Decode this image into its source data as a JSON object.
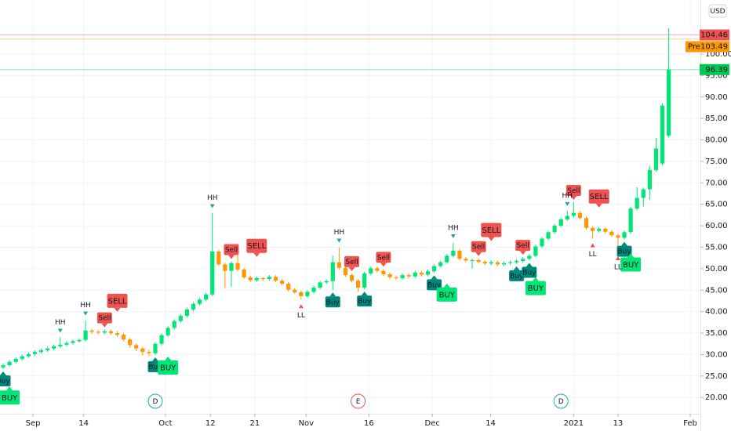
{
  "chart_data": {
    "type": "candlestick",
    "currency": "USD",
    "xlim": [
      -0.5,
      110
    ],
    "ylim": [
      16.2,
      112.6
    ],
    "xticks": [
      {
        "value": 4.7,
        "label": "Sep"
      },
      {
        "value": 12.7,
        "label": "14"
      },
      {
        "value": 25.6,
        "label": "Oct"
      },
      {
        "value": 32.7,
        "label": "12"
      },
      {
        "value": 39.7,
        "label": "21"
      },
      {
        "value": 47.8,
        "label": "Nov"
      },
      {
        "value": 57.7,
        "label": "16"
      },
      {
        "value": 67.7,
        "label": "Dec"
      },
      {
        "value": 76.9,
        "label": "14"
      },
      {
        "value": 90,
        "label": "2021"
      },
      {
        "value": 97,
        "label": "13"
      },
      {
        "value": 108.4,
        "label": "Feb"
      }
    ],
    "yticks": [
      {
        "value": 20,
        "label": "20.00"
      },
      {
        "value": 25,
        "label": "25.00"
      },
      {
        "value": 30,
        "label": "30.00"
      },
      {
        "value": 35,
        "label": "35.00"
      },
      {
        "value": 40,
        "label": "40.00"
      },
      {
        "value": 45,
        "label": "45.00"
      },
      {
        "value": 50,
        "label": "50.00"
      },
      {
        "value": 55,
        "label": "55.00"
      },
      {
        "value": 60,
        "label": "60.00"
      },
      {
        "value": 65,
        "label": "65.00"
      },
      {
        "value": 70,
        "label": "70.00"
      },
      {
        "value": 75,
        "label": "75.00"
      },
      {
        "value": 80,
        "label": "80.00"
      },
      {
        "value": 85,
        "label": "85.00"
      },
      {
        "value": 90,
        "label": "90.00"
      },
      {
        "value": 95,
        "label": "95.00"
      },
      {
        "value": 100,
        "label": "100.00"
      }
    ],
    "grid": true,
    "up_color": "#00e676",
    "down_color": "#ff9800",
    "ohlc": [
      [
        27.0,
        27.9,
        26.6,
        27.5
      ],
      [
        27.5,
        28.7,
        27.1,
        28.3
      ],
      [
        28.3,
        29.4,
        27.9,
        29.0
      ],
      [
        29.0,
        30.0,
        28.6,
        29.6
      ],
      [
        29.6,
        30.5,
        29.2,
        30.1
      ],
      [
        30.1,
        31.0,
        29.7,
        30.6
      ],
      [
        30.6,
        31.4,
        30.2,
        31.0
      ],
      [
        31.0,
        31.8,
        30.6,
        31.4
      ],
      [
        31.4,
        32.3,
        31.0,
        31.9
      ],
      [
        31.9,
        34.0,
        31.5,
        32.3
      ],
      [
        32.3,
        33.1,
        31.9,
        32.7
      ],
      [
        32.7,
        33.5,
        32.3,
        33.1
      ],
      [
        33.1,
        33.8,
        32.8,
        33.4
      ],
      [
        33.4,
        38.0,
        33.0,
        35.6
      ],
      [
        35.6,
        36.0,
        34.9,
        35.3
      ],
      [
        35.3,
        35.7,
        34.7,
        35.1
      ],
      [
        35.1,
        35.8,
        34.7,
        35.4
      ],
      [
        35.4,
        35.8,
        34.6,
        35.0
      ],
      [
        35.0,
        35.4,
        34.2,
        34.6
      ],
      [
        34.6,
        35.0,
        33.1,
        33.5
      ],
      [
        33.5,
        33.9,
        31.6,
        32.2
      ],
      [
        32.2,
        32.6,
        30.8,
        31.4
      ],
      [
        31.4,
        31.8,
        29.8,
        30.6
      ],
      [
        30.6,
        31.2,
        29.6,
        30.3
      ],
      [
        30.3,
        32.9,
        29.9,
        32.5
      ],
      [
        32.5,
        34.9,
        32.1,
        34.5
      ],
      [
        34.5,
        36.6,
        34.1,
        36.2
      ],
      [
        36.2,
        38.2,
        35.8,
        37.8
      ],
      [
        37.8,
        39.4,
        37.4,
        39.0
      ],
      [
        39.0,
        40.9,
        38.6,
        40.5
      ],
      [
        40.5,
        42.2,
        40.1,
        41.8
      ],
      [
        41.8,
        43.2,
        41.4,
        42.8
      ],
      [
        42.8,
        44.4,
        42.4,
        44.0
      ],
      [
        44.0,
        63.0,
        43.6,
        54.0
      ],
      [
        54.0,
        54.4,
        50.6,
        51.0
      ],
      [
        51.0,
        51.4,
        45.5,
        49.5
      ],
      [
        49.5,
        51.7,
        45.8,
        51.3
      ],
      [
        51.3,
        53.5,
        49.4,
        49.8
      ],
      [
        49.8,
        50.2,
        47.6,
        48.0
      ],
      [
        48.0,
        48.4,
        46.9,
        47.3
      ],
      [
        47.3,
        48.2,
        46.9,
        47.8
      ],
      [
        47.8,
        48.0,
        47.2,
        47.6
      ],
      [
        47.6,
        48.5,
        47.2,
        48.1
      ],
      [
        48.1,
        48.5,
        46.8,
        47.2
      ],
      [
        47.2,
        47.6,
        46.1,
        46.5
      ],
      [
        46.5,
        46.9,
        44.7,
        45.1
      ],
      [
        45.1,
        45.5,
        44.1,
        44.5
      ],
      [
        44.5,
        44.9,
        42.8,
        43.6
      ],
      [
        43.6,
        45.0,
        43.2,
        44.6
      ],
      [
        44.6,
        46.0,
        44.2,
        45.6
      ],
      [
        45.6,
        47.2,
        45.2,
        46.8
      ],
      [
        46.8,
        47.5,
        46.4,
        47.1
      ],
      [
        47.1,
        53.0,
        45.0,
        51.5
      ],
      [
        51.5,
        55.0,
        49.8,
        50.2
      ],
      [
        50.2,
        50.6,
        48.1,
        48.5
      ],
      [
        48.5,
        48.9,
        46.8,
        47.2
      ],
      [
        47.2,
        47.6,
        44.6,
        45.6
      ],
      [
        45.6,
        49.3,
        45.2,
        48.9
      ],
      [
        48.9,
        50.5,
        48.5,
        50.1
      ],
      [
        50.1,
        50.5,
        49.1,
        49.5
      ],
      [
        49.5,
        49.9,
        48.3,
        48.7
      ],
      [
        48.7,
        49.1,
        47.6,
        48.0
      ],
      [
        48.0,
        48.4,
        47.4,
        47.8
      ],
      [
        47.8,
        48.9,
        47.4,
        48.5
      ],
      [
        48.5,
        48.9,
        47.8,
        48.2
      ],
      [
        48.2,
        49.5,
        47.8,
        49.1
      ],
      [
        49.1,
        49.5,
        48.2,
        48.6
      ],
      [
        48.6,
        49.8,
        48.2,
        49.4
      ],
      [
        49.4,
        51.0,
        49.0,
        50.6
      ],
      [
        50.6,
        51.9,
        50.2,
        51.5
      ],
      [
        51.5,
        53.4,
        51.1,
        53.0
      ],
      [
        53.0,
        56.0,
        52.6,
        54.2
      ],
      [
        54.2,
        54.6,
        51.9,
        52.3
      ],
      [
        52.3,
        52.7,
        51.5,
        51.9
      ],
      [
        51.9,
        52.4,
        50.0,
        52.0
      ],
      [
        52.0,
        52.4,
        51.2,
        51.6
      ],
      [
        51.6,
        52.0,
        50.8,
        51.2
      ],
      [
        51.2,
        51.9,
        50.8,
        51.5
      ],
      [
        51.5,
        51.9,
        50.6,
        51.0
      ],
      [
        51.0,
        51.7,
        50.6,
        51.3
      ],
      [
        51.3,
        51.9,
        50.9,
        51.5
      ],
      [
        51.5,
        52.2,
        51.1,
        51.8
      ],
      [
        51.8,
        52.7,
        51.4,
        52.3
      ],
      [
        52.3,
        53.4,
        51.9,
        53.0
      ],
      [
        53.0,
        55.6,
        52.6,
        55.2
      ],
      [
        55.2,
        57.4,
        54.8,
        57.0
      ],
      [
        57.0,
        58.9,
        56.6,
        58.5
      ],
      [
        58.5,
        60.4,
        58.1,
        60.0
      ],
      [
        60.0,
        61.9,
        59.6,
        61.5
      ],
      [
        61.5,
        63.5,
        61.1,
        62.3
      ],
      [
        62.3,
        65.5,
        61.9,
        63.0
      ],
      [
        63.0,
        63.4,
        61.4,
        61.8
      ],
      [
        61.8,
        62.2,
        59.1,
        59.5
      ],
      [
        59.5,
        59.9,
        57.0,
        58.8
      ],
      [
        58.8,
        59.7,
        58.4,
        59.3
      ],
      [
        59.3,
        59.7,
        58.2,
        58.6
      ],
      [
        58.6,
        59.0,
        57.4,
        57.8
      ],
      [
        57.8,
        58.2,
        54.0,
        57.2
      ],
      [
        57.2,
        58.9,
        56.8,
        58.5
      ],
      [
        58.5,
        64.4,
        58.1,
        64.0
      ],
      [
        64.0,
        69.0,
        63.6,
        66.5
      ],
      [
        66.5,
        68.9,
        64.5,
        68.5
      ],
      [
        68.5,
        74.0,
        66.0,
        73.0
      ],
      [
        73.0,
        80.5,
        72.6,
        78.0
      ],
      [
        74.5,
        88.5,
        74.1,
        88.0
      ],
      [
        81.0,
        106.0,
        80.6,
        96.39
      ]
    ],
    "markers": [
      {
        "label": "Buy",
        "color": "#00897b",
        "text_color": "#ffffff",
        "side": "below",
        "size": "small",
        "indices": [
          0,
          24,
          52,
          57,
          68,
          81,
          83,
          98
        ]
      },
      {
        "label": "BUY",
        "color": "#00e676",
        "text_color": "#131722",
        "side": "below",
        "size": "large",
        "indices": [
          1,
          26,
          70,
          84,
          99
        ]
      },
      {
        "label": "Sell",
        "color": "#ef5350",
        "text_color": "#ffffff",
        "side": "above",
        "size": "small",
        "indices": [
          16,
          36,
          55,
          60,
          75,
          82,
          90
        ]
      },
      {
        "label": "SELL",
        "color": "#ef5350",
        "text_color": "#ffffff",
        "side": "above",
        "size": "large",
        "indices": [
          18,
          40,
          77,
          94
        ]
      },
      {
        "label": "HH",
        "color": "#26a69a",
        "side": "above",
        "size": "text",
        "indices": [
          9,
          13,
          33,
          53,
          71,
          89
        ]
      },
      {
        "label": "LL",
        "color": "#ef5350",
        "side": "below",
        "size": "text",
        "indices": [
          47,
          93,
          97
        ]
      }
    ],
    "events": [
      {
        "label": "D",
        "x": 24,
        "color": "#26a69a"
      },
      {
        "label": "E",
        "x": 56,
        "color": "#ef5350"
      },
      {
        "label": "D",
        "x": 88,
        "color": "#26a69a"
      }
    ],
    "price_tags": [
      {
        "value": 104.46,
        "color": "#ef5350"
      },
      {
        "label": "Pre",
        "value": 103.49,
        "color": "#ff9800"
      },
      {
        "value": 96.39,
        "color": "#00c853"
      }
    ]
  }
}
